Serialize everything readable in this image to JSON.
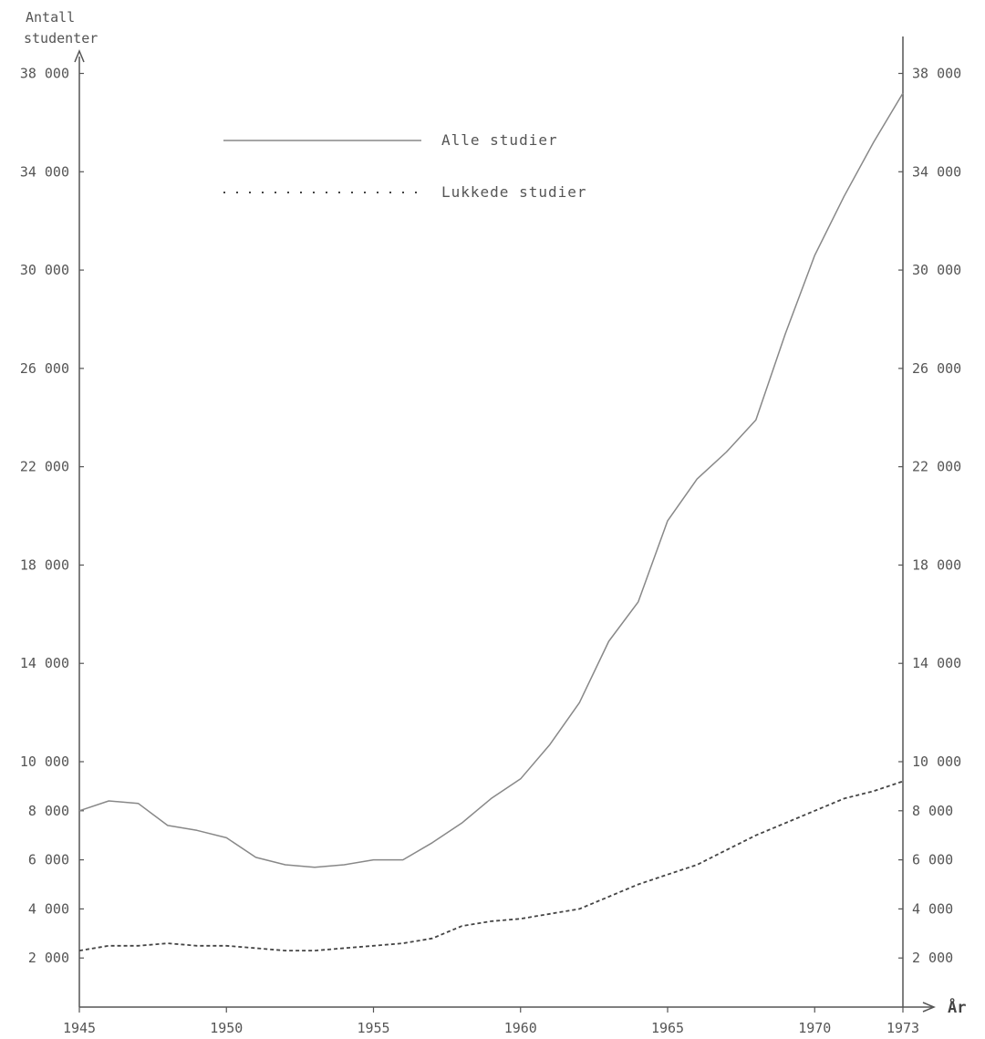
{
  "chart_data": {
    "type": "line",
    "ylabel_line1": "Antall",
    "ylabel_line2": "studenter",
    "xlabel": "År",
    "x_ticks": [
      1945,
      1950,
      1955,
      1960,
      1965,
      1970,
      1973
    ],
    "y_ticks": [
      2000,
      4000,
      6000,
      8000,
      10000,
      14000,
      18000,
      22000,
      26000,
      30000,
      34000,
      38000
    ],
    "y_tick_labels": [
      "2 000",
      "4 000",
      "6 000",
      "8 000",
      "10 000",
      "14 000",
      "18 000",
      "22 000",
      "26 000",
      "30 000",
      "34 000",
      "38 000"
    ],
    "y_scale_note": "piecewise: 0-10000 compressed, 10000-38000 linear",
    "legend_placement": "top-left",
    "colors": {
      "axis": "#555555",
      "line": "#888888",
      "dashed": "#444444"
    },
    "series": [
      {
        "name": "Alle studier",
        "style": "solid",
        "x": [
          1945,
          1946,
          1947,
          1948,
          1949,
          1950,
          1951,
          1952,
          1953,
          1954,
          1955,
          1956,
          1957,
          1958,
          1959,
          1960,
          1961,
          1962,
          1963,
          1964,
          1965,
          1966,
          1967,
          1968,
          1969,
          1970,
          1971,
          1972,
          1973
        ],
        "y": [
          8000,
          8400,
          8300,
          7400,
          7200,
          6900,
          6100,
          5800,
          5700,
          5800,
          6000,
          6000,
          6700,
          7500,
          8500,
          9300,
          10700,
          12400,
          14900,
          16500,
          19800,
          21500,
          22600,
          23900,
          27400,
          30600,
          33000,
          35200,
          37200
        ]
      },
      {
        "name": "Lukkede studier",
        "style": "dotted",
        "x": [
          1945,
          1946,
          1947,
          1948,
          1949,
          1950,
          1951,
          1952,
          1953,
          1954,
          1955,
          1956,
          1957,
          1958,
          1959,
          1960,
          1961,
          1962,
          1963,
          1964,
          1965,
          1966,
          1967,
          1968,
          1969,
          1970,
          1971,
          1972,
          1973
        ],
        "y": [
          2300,
          2500,
          2500,
          2600,
          2500,
          2500,
          2400,
          2300,
          2300,
          2400,
          2500,
          2600,
          2800,
          3300,
          3500,
          3600,
          3800,
          4000,
          4500,
          5000,
          5400,
          5800,
          6400,
          7000,
          7500,
          8000,
          8500,
          8800,
          9200
        ]
      }
    ]
  }
}
